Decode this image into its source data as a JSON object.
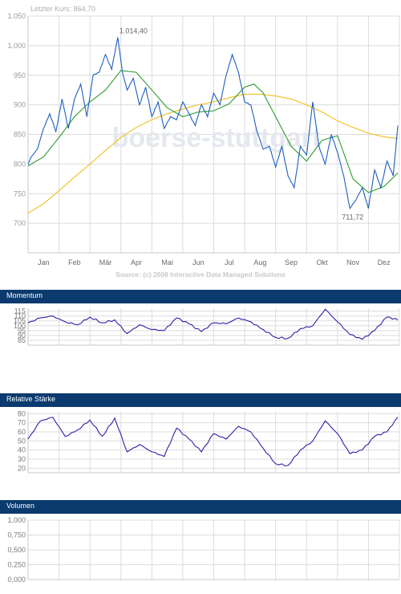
{
  "main": {
    "last_price": "Letzter Kurs: 864,70",
    "source": "Source: (c) 2008 Interactive Data Managed Solutions",
    "watermark": "boerse-stuttgart",
    "high_label": "1.014,40",
    "low_label": "711,72"
  },
  "panels": {
    "momentum_title": "Momentum",
    "rsi_title": "Relative Stärke",
    "volume_title": "Volumen"
  },
  "colors": {
    "price": "#1f5fbf",
    "ma_short": "#2e9a2e",
    "ma_long": "#f0c020",
    "indicator": "#3a1aa8",
    "header_bg": "#0a3a6e",
    "grid": "#dcdcdc"
  },
  "chart_data": [
    {
      "type": "line",
      "title": "",
      "x_months": [
        "Jan",
        "Feb",
        "Mär",
        "Apr",
        "Mai",
        "Jun",
        "Jul",
        "Aug",
        "Sep",
        "Okt",
        "Nov",
        "Dez"
      ],
      "yticks": [
        "1.050",
        "1.000",
        "950",
        "900",
        "850",
        "800",
        "750",
        "700"
      ],
      "ylim": [
        650,
        1050
      ],
      "grid": true,
      "series": [
        {
          "key": "price",
          "t": [
            0,
            0.1,
            0.3,
            0.5,
            0.7,
            0.9,
            1.1,
            1.3,
            1.5,
            1.7,
            1.9,
            2.1,
            2.3,
            2.5,
            2.7,
            2.9,
            3.05,
            3.2,
            3.4,
            3.6,
            3.8,
            4.0,
            4.2,
            4.4,
            4.6,
            4.8,
            5.0,
            5.2,
            5.4,
            5.6,
            5.8,
            6.0,
            6.2,
            6.4,
            6.6,
            6.8,
            7.0,
            7.2,
            7.4,
            7.6,
            7.8,
            8.0,
            8.2,
            8.4,
            8.6,
            8.8,
            9.0,
            9.2,
            9.4,
            9.6,
            9.8,
            10.0,
            10.2,
            10.4,
            10.6,
            10.8,
            11.0,
            11.2,
            11.4,
            11.6,
            11.8,
            11.95
          ],
          "values": [
            800,
            812,
            825,
            860,
            885,
            855,
            910,
            860,
            910,
            935,
            880,
            950,
            955,
            985,
            960,
            1014,
            955,
            925,
            945,
            900,
            930,
            880,
            905,
            860,
            880,
            875,
            905,
            885,
            865,
            900,
            880,
            920,
            900,
            950,
            985,
            955,
            905,
            900,
            855,
            825,
            830,
            795,
            830,
            780,
            760,
            830,
            815,
            905,
            830,
            800,
            850,
            820,
            780,
            725,
            740,
            760,
            725,
            790,
            760,
            805,
            780,
            865
          ]
        },
        {
          "key": "ma_short",
          "t": [
            0,
            0.5,
            1,
            1.5,
            2,
            2.5,
            3,
            3.5,
            4,
            4.5,
            5,
            5.5,
            6,
            6.5,
            7,
            7.3,
            7.6,
            8,
            8.5,
            9,
            9.5,
            10,
            10.5,
            11,
            11.5,
            11.95
          ],
          "values": [
            797,
            812,
            845,
            880,
            905,
            925,
            958,
            955,
            925,
            895,
            880,
            888,
            890,
            902,
            930,
            935,
            920,
            880,
            830,
            805,
            840,
            848,
            775,
            752,
            762,
            785
          ]
        },
        {
          "key": "ma_long",
          "t": [
            0,
            0.5,
            1,
            1.5,
            2,
            2.5,
            3,
            3.5,
            4,
            4.5,
            5,
            5.5,
            6,
            6.5,
            7,
            7.5,
            8,
            8.5,
            9,
            9.5,
            10,
            10.5,
            11,
            11.5,
            11.95
          ],
          "values": [
            717,
            733,
            755,
            778,
            800,
            823,
            845,
            862,
            875,
            885,
            893,
            900,
            905,
            912,
            918,
            918,
            915,
            910,
            900,
            888,
            873,
            862,
            852,
            846,
            843
          ]
        }
      ]
    },
    {
      "type": "line",
      "title": "Momentum",
      "yticks": [
        "115",
        "110",
        "105",
        "100",
        "95",
        "90",
        "85"
      ],
      "ylim": [
        80,
        118
      ],
      "grid": true,
      "series": [
        {
          "key": "momentum",
          "t": [
            0,
            0.4,
            0.8,
            1.2,
            1.6,
            2.0,
            2.4,
            2.8,
            3.2,
            3.6,
            4.0,
            4.4,
            4.8,
            5.2,
            5.6,
            6.0,
            6.4,
            6.8,
            7.2,
            7.6,
            8.0,
            8.4,
            8.8,
            9.2,
            9.6,
            10.0,
            10.4,
            10.8,
            11.2,
            11.6,
            11.95
          ],
          "values": [
            103,
            108,
            110,
            104,
            101,
            109,
            103,
            106,
            92,
            101,
            96,
            95,
            108,
            102,
            94,
            103,
            102,
            108,
            104,
            96,
            88,
            87,
            97,
            100,
            117,
            104,
            91,
            86,
            95,
            109,
            106
          ]
        }
      ]
    },
    {
      "type": "line",
      "title": "Relative Stärke",
      "yticks": [
        "80",
        "70",
        "60",
        "50",
        "40",
        "30",
        "20"
      ],
      "ylim": [
        15,
        82
      ],
      "grid": true,
      "series": [
        {
          "key": "rsi",
          "t": [
            0,
            0.4,
            0.8,
            1.2,
            1.6,
            2.0,
            2.4,
            2.8,
            3.2,
            3.6,
            4.0,
            4.4,
            4.8,
            5.2,
            5.6,
            6.0,
            6.4,
            6.8,
            7.2,
            7.6,
            8.0,
            8.4,
            8.8,
            9.2,
            9.6,
            10.0,
            10.4,
            10.8,
            11.2,
            11.6,
            11.95
          ],
          "values": [
            52,
            72,
            76,
            55,
            62,
            73,
            55,
            75,
            38,
            46,
            38,
            33,
            64,
            52,
            38,
            58,
            52,
            66,
            60,
            42,
            25,
            23,
            40,
            50,
            72,
            58,
            36,
            40,
            55,
            60,
            76
          ]
        }
      ]
    },
    {
      "type": "line",
      "title": "Volumen",
      "yticks": [
        "1,000",
        "0,750",
        "0,500",
        "0,250",
        "0,000"
      ],
      "ylim": [
        0,
        1
      ],
      "grid": true,
      "series": []
    }
  ]
}
